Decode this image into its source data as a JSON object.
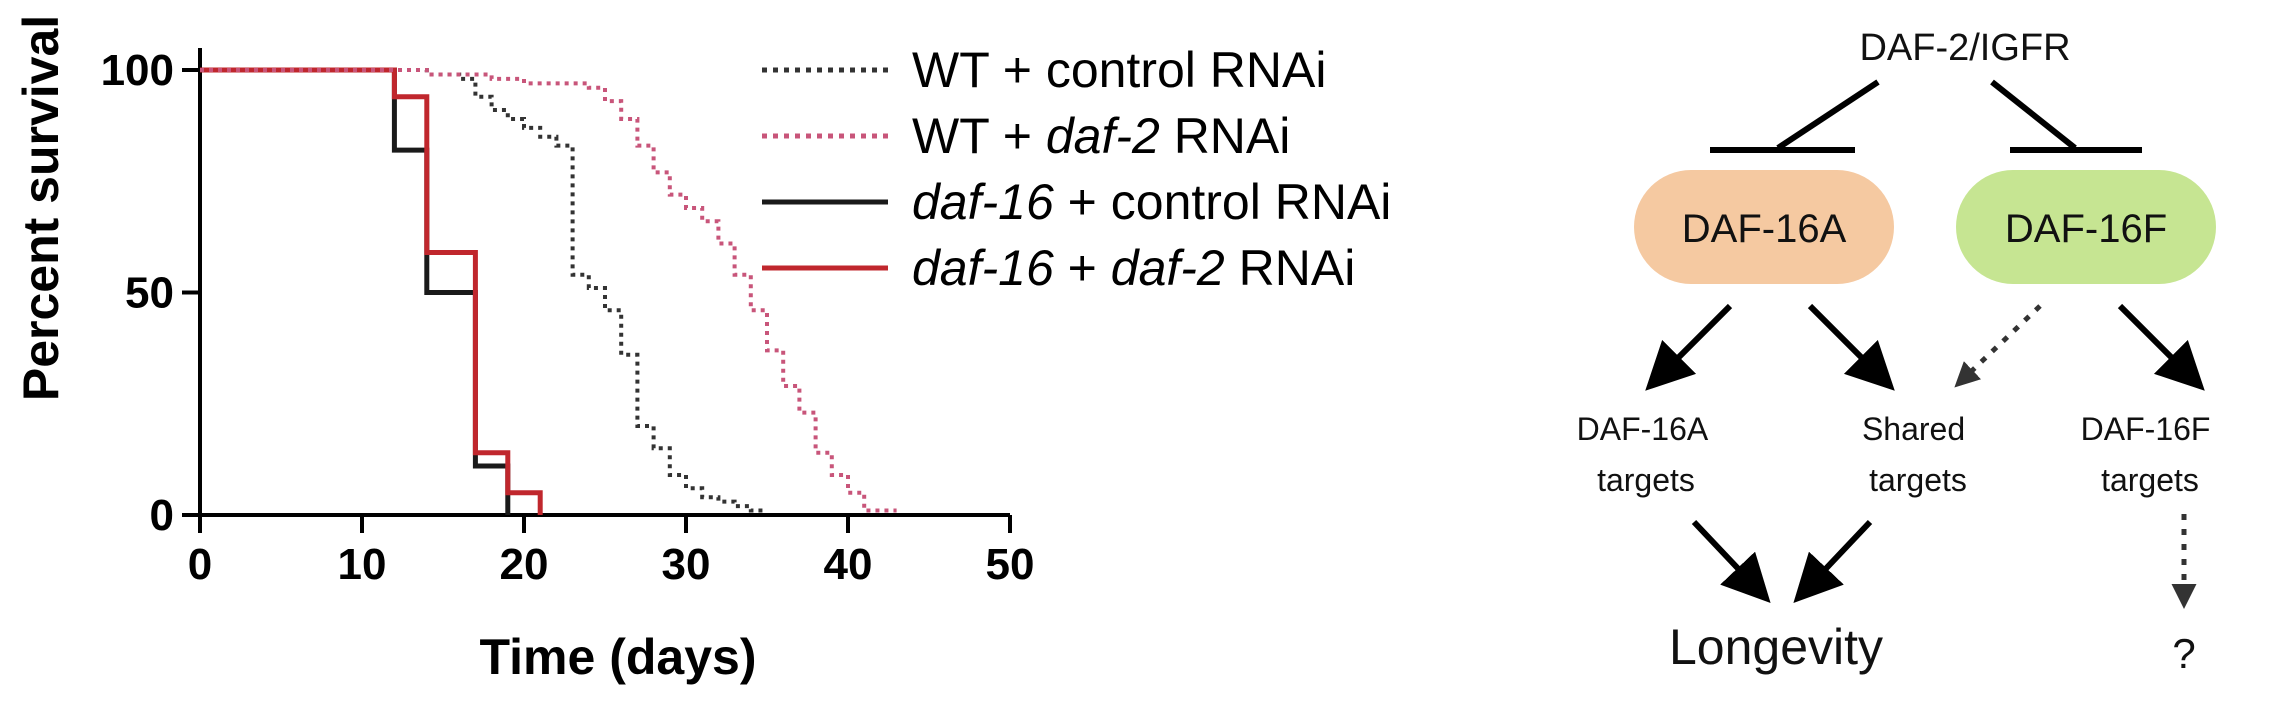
{
  "chart_data": {
    "type": "line",
    "subtype": "kaplan-meier step",
    "xlabel": "Time (days)",
    "ylabel": "Percent survival",
    "xlim": [
      0,
      50
    ],
    "ylim": [
      0,
      100
    ],
    "xticks": [
      0,
      10,
      20,
      30,
      40,
      50
    ],
    "yticks": [
      0,
      50,
      100
    ],
    "grid": false,
    "legend_position": "top-right",
    "series": [
      {
        "name_parts": [
          {
            "text": "WT + control RNAi",
            "italic": false
          }
        ],
        "color": "#333333",
        "style": "dotted",
        "points": [
          [
            0,
            100
          ],
          [
            12,
            100
          ],
          [
            14,
            99
          ],
          [
            16,
            98
          ],
          [
            17,
            94
          ],
          [
            18,
            91
          ],
          [
            19,
            89
          ],
          [
            20,
            87
          ],
          [
            21,
            85
          ],
          [
            22,
            83
          ],
          [
            23,
            54
          ],
          [
            24,
            51
          ],
          [
            25,
            46
          ],
          [
            26,
            36
          ],
          [
            27,
            20
          ],
          [
            28,
            15
          ],
          [
            29,
            9
          ],
          [
            30,
            6
          ],
          [
            31,
            4
          ],
          [
            32,
            3
          ],
          [
            33,
            2
          ],
          [
            34,
            1
          ],
          [
            35,
            1
          ]
        ]
      },
      {
        "name_parts": [
          {
            "text": "WT + ",
            "italic": false
          },
          {
            "text": "daf-2",
            "italic": true
          },
          {
            "text": " RNAi",
            "italic": false
          }
        ],
        "color": "#c8557a",
        "style": "dotted",
        "points": [
          [
            0,
            100
          ],
          [
            12,
            100
          ],
          [
            14,
            99
          ],
          [
            16,
            99
          ],
          [
            18,
            98
          ],
          [
            20,
            97
          ],
          [
            22,
            97
          ],
          [
            24,
            96
          ],
          [
            25,
            93
          ],
          [
            26,
            89
          ],
          [
            27,
            83
          ],
          [
            28,
            77
          ],
          [
            29,
            72
          ],
          [
            30,
            69
          ],
          [
            31,
            66
          ],
          [
            32,
            61
          ],
          [
            33,
            54
          ],
          [
            34,
            46
          ],
          [
            35,
            37
          ],
          [
            36,
            29
          ],
          [
            37,
            23
          ],
          [
            38,
            14
          ],
          [
            39,
            9
          ],
          [
            40,
            5
          ],
          [
            41,
            1
          ],
          [
            42,
            1
          ],
          [
            43,
            1
          ]
        ]
      },
      {
        "name_parts": [
          {
            "text": "daf-16",
            "italic": true
          },
          {
            "text": " + control RNAi",
            "italic": false
          }
        ],
        "color": "#1a1a1a",
        "style": "solid",
        "points": [
          [
            0,
            100
          ],
          [
            12,
            100
          ],
          [
            12,
            82
          ],
          [
            14,
            82
          ],
          [
            14,
            50
          ],
          [
            17,
            50
          ],
          [
            17,
            11
          ],
          [
            19,
            11
          ],
          [
            19,
            0
          ]
        ]
      },
      {
        "name_parts": [
          {
            "text": "daf-16",
            "italic": true
          },
          {
            "text": " + ",
            "italic": false
          },
          {
            "text": "daf-2",
            "italic": true
          },
          {
            "text": " RNAi",
            "italic": false
          }
        ],
        "color": "#c0272d",
        "style": "solid",
        "points": [
          [
            0,
            100
          ],
          [
            12,
            100
          ],
          [
            12,
            94
          ],
          [
            14,
            94
          ],
          [
            14,
            59
          ],
          [
            17,
            59
          ],
          [
            17,
            14
          ],
          [
            19,
            14
          ],
          [
            19,
            5
          ],
          [
            21,
            5
          ],
          [
            21,
            0
          ]
        ]
      }
    ]
  },
  "diagram": {
    "top_label": "DAF-2/IGFR",
    "node_a": {
      "label": "DAF-16A",
      "color": "#f5c9a1"
    },
    "node_f": {
      "label": "DAF-16F",
      "color": "#c6e592"
    },
    "targets_a": [
      "DAF-16A",
      "targets"
    ],
    "targets_shared": [
      "Shared",
      "targets"
    ],
    "targets_f": [
      "DAF-16F",
      "targets"
    ],
    "outcome_left": "Longevity",
    "outcome_right": "?"
  }
}
